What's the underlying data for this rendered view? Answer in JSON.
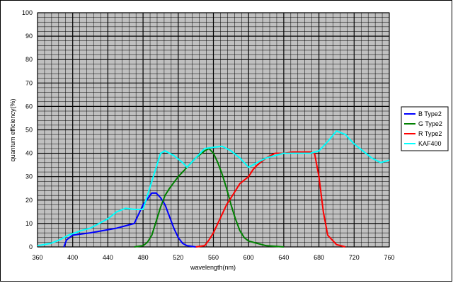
{
  "chart_data": {
    "type": "line",
    "xlabel": "wavelength(nm)",
    "ylabel": "quantum efficiency(%)",
    "xlim": [
      360,
      760
    ],
    "ylim": [
      0,
      100
    ],
    "x_ticks": [
      360,
      400,
      440,
      480,
      520,
      560,
      600,
      640,
      680,
      720,
      760
    ],
    "y_ticks": [
      0,
      10,
      20,
      30,
      40,
      50,
      60,
      70,
      80,
      90,
      100
    ],
    "x_tick_labels": [
      "360",
      "400",
      "440",
      "480",
      "520",
      "560",
      "600",
      "640",
      "680",
      "720",
      "760"
    ],
    "y_tick_labels": [
      "0",
      "10",
      "20",
      "30",
      "40",
      "50",
      "60",
      "70",
      "80",
      "90",
      "100"
    ],
    "grid": "on",
    "plot_background": "#c0c0c0",
    "legend_position": "right",
    "series": [
      {
        "name": "B Type2",
        "color": "#0000ff",
        "points": [
          [
            390,
            0
          ],
          [
            393,
            3
          ],
          [
            400,
            5
          ],
          [
            420,
            6
          ],
          [
            450,
            8
          ],
          [
            470,
            10
          ],
          [
            480,
            18
          ],
          [
            490,
            23
          ],
          [
            495,
            23
          ],
          [
            500,
            21
          ],
          [
            505,
            18
          ],
          [
            510,
            13
          ],
          [
            515,
            8
          ],
          [
            520,
            4
          ],
          [
            525,
            1.5
          ],
          [
            530,
            0.5
          ],
          [
            540,
            0
          ]
        ]
      },
      {
        "name": "G Type2",
        "color": "#008000",
        "points": [
          [
            470,
            0
          ],
          [
            480,
            0.5
          ],
          [
            485,
            2
          ],
          [
            490,
            5
          ],
          [
            495,
            11
          ],
          [
            500,
            17
          ],
          [
            505,
            22
          ],
          [
            510,
            25
          ],
          [
            520,
            30
          ],
          [
            530,
            34
          ],
          [
            540,
            38
          ],
          [
            550,
            41
          ],
          [
            555,
            42
          ],
          [
            560,
            40
          ],
          [
            565,
            36
          ],
          [
            570,
            31
          ],
          [
            575,
            25
          ],
          [
            580,
            18
          ],
          [
            585,
            12
          ],
          [
            590,
            7
          ],
          [
            595,
            4
          ],
          [
            600,
            2.5
          ],
          [
            610,
            1.5
          ],
          [
            620,
            0.5
          ],
          [
            640,
            0
          ]
        ]
      },
      {
        "name": "R Type2",
        "color": "#ff0000",
        "points": [
          [
            540,
            0
          ],
          [
            550,
            0.5
          ],
          [
            555,
            3
          ],
          [
            560,
            6
          ],
          [
            565,
            10
          ],
          [
            570,
            14
          ],
          [
            575,
            18
          ],
          [
            580,
            21
          ],
          [
            585,
            24
          ],
          [
            590,
            27
          ],
          [
            600,
            30
          ],
          [
            605,
            33
          ],
          [
            610,
            35
          ],
          [
            620,
            38
          ],
          [
            630,
            40
          ],
          [
            640,
            40
          ],
          [
            650,
            40.5
          ],
          [
            660,
            40.5
          ],
          [
            670,
            40.5
          ],
          [
            675,
            40
          ],
          [
            680,
            30
          ],
          [
            685,
            15
          ],
          [
            690,
            5
          ],
          [
            700,
            1
          ],
          [
            710,
            0
          ]
        ]
      },
      {
        "name": "KAF400",
        "color": "#00ffff",
        "points": [
          [
            360,
            0.5
          ],
          [
            375,
            1.5
          ],
          [
            385,
            3
          ],
          [
            395,
            5
          ],
          [
            410,
            7
          ],
          [
            420,
            8
          ],
          [
            430,
            10
          ],
          [
            440,
            12
          ],
          [
            450,
            15
          ],
          [
            460,
            16.5
          ],
          [
            470,
            16
          ],
          [
            480,
            16
          ],
          [
            485,
            22
          ],
          [
            490,
            28
          ],
          [
            495,
            34
          ],
          [
            500,
            40
          ],
          [
            505,
            41
          ],
          [
            515,
            39
          ],
          [
            525,
            36
          ],
          [
            530,
            34
          ],
          [
            540,
            38
          ],
          [
            550,
            42
          ],
          [
            560,
            42.5
          ],
          [
            570,
            43
          ],
          [
            580,
            41
          ],
          [
            590,
            38
          ],
          [
            600,
            34
          ],
          [
            610,
            36
          ],
          [
            620,
            38
          ],
          [
            630,
            39
          ],
          [
            640,
            40
          ],
          [
            650,
            40
          ],
          [
            660,
            40
          ],
          [
            670,
            40
          ],
          [
            680,
            41
          ],
          [
            690,
            45
          ],
          [
            700,
            49.5
          ],
          [
            710,
            48
          ],
          [
            720,
            44
          ],
          [
            730,
            41
          ],
          [
            740,
            38
          ],
          [
            750,
            36
          ],
          [
            760,
            37
          ]
        ]
      }
    ]
  }
}
